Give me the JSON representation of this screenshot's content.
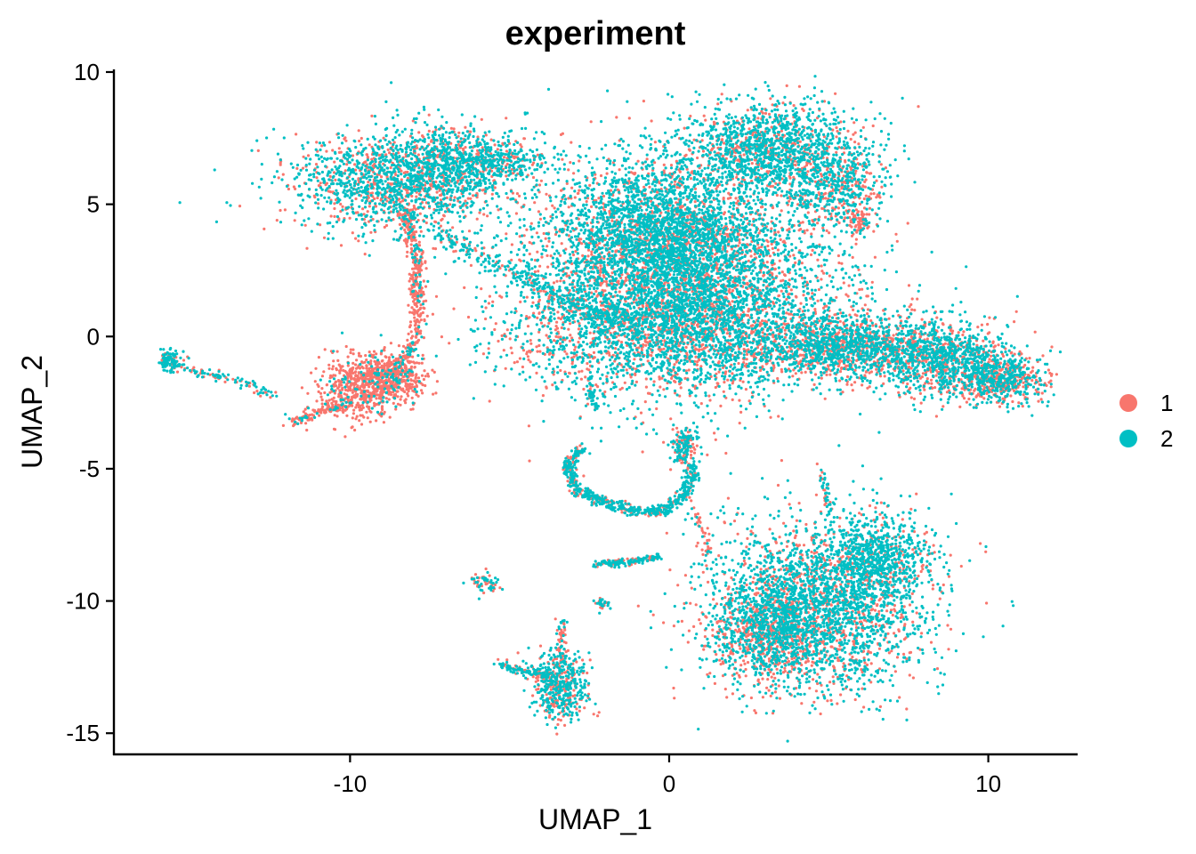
{
  "chart_data": {
    "type": "scatter",
    "title": "experiment",
    "xlabel": "UMAP_1",
    "ylabel": "UMAP_2",
    "xlim": [
      -17.4,
      12.8
    ],
    "ylim": [
      -15.8,
      10.1
    ],
    "x_ticks": [
      -10,
      0,
      10
    ],
    "x_tick_labels": [
      "-10",
      "0",
      "10"
    ],
    "y_ticks": [
      10,
      5,
      0,
      -5,
      -10,
      -15
    ],
    "y_tick_labels": [
      "10",
      "5",
      "0",
      "-5",
      "-10",
      "-15"
    ],
    "grid": false,
    "legend": "right",
    "series": [
      {
        "name": "1",
        "color": "#F8766D"
      },
      {
        "name": "2",
        "color": "#00BFC4"
      }
    ],
    "clusters": [
      {
        "cx": -8.3,
        "cy": 5.9,
        "sx": 1.7,
        "sy": 0.95,
        "n": 1700,
        "pA": 0.35
      },
      {
        "cx": -6.6,
        "cy": 6.8,
        "sx": 1.1,
        "sy": 0.6,
        "n": 500,
        "pA": 0.3
      },
      {
        "cx": -5.0,
        "cy": 6.6,
        "sx": 0.6,
        "sy": 0.3,
        "n": 140,
        "pA": 0.25
      },
      {
        "cx": -9.6,
        "cy": -1.9,
        "sx": 0.7,
        "sy": 0.55,
        "n": 600,
        "pA": 0.9
      },
      {
        "cx": -8.6,
        "cy": -1.5,
        "sx": 0.5,
        "sy": 0.45,
        "n": 350,
        "pA": 0.8
      },
      {
        "cx": -15.6,
        "cy": -0.95,
        "sx": 0.22,
        "sy": 0.2,
        "n": 110,
        "pA": 0.3
      },
      {
        "cx": 0.3,
        "cy": 2.2,
        "sx": 2.4,
        "sy": 2.1,
        "n": 5200,
        "pA": 0.3
      },
      {
        "cx": -0.3,
        "cy": 4.2,
        "sx": 1.5,
        "sy": 1.2,
        "n": 1500,
        "pA": 0.25
      },
      {
        "cx": 0.0,
        "cy": 0.2,
        "sx": 2.8,
        "sy": 1.1,
        "n": 1500,
        "pA": 0.4
      },
      {
        "cx": 3.3,
        "cy": 7.1,
        "sx": 1.4,
        "sy": 0.85,
        "n": 1500,
        "pA": 0.25
      },
      {
        "cx": 5.3,
        "cy": 5.5,
        "sx": 0.7,
        "sy": 0.6,
        "n": 400,
        "pA": 0.4
      },
      {
        "cx": 5.9,
        "cy": 4.3,
        "sx": 0.25,
        "sy": 0.25,
        "n": 80,
        "pA": 0.85
      },
      {
        "cx": 5.6,
        "cy": -0.4,
        "sx": 1.6,
        "sy": 0.6,
        "n": 1500,
        "pA": 0.4
      },
      {
        "cx": 8.6,
        "cy": -0.8,
        "sx": 1.0,
        "sy": 0.75,
        "n": 900,
        "pA": 0.35
      },
      {
        "cx": 10.4,
        "cy": -1.6,
        "sx": 0.7,
        "sy": 0.45,
        "n": 650,
        "pA": 0.5
      },
      {
        "cx": 4.6,
        "cy": -10.2,
        "sx": 1.7,
        "sy": 1.6,
        "n": 2800,
        "pA": 0.3
      },
      {
        "cx": 3.2,
        "cy": -11.2,
        "sx": 0.9,
        "sy": 0.9,
        "n": 900,
        "pA": 0.55
      },
      {
        "cx": 6.5,
        "cy": -8.3,
        "sx": 0.8,
        "sy": 0.9,
        "n": 700,
        "pA": 0.2
      },
      {
        "cx": -3.4,
        "cy": -13.2,
        "sx": 0.45,
        "sy": 0.65,
        "n": 500,
        "pA": 0.35
      },
      {
        "cx": 0.5,
        "cy": -4.2,
        "sx": 0.2,
        "sy": 0.35,
        "n": 160,
        "pA": 0.4
      },
      {
        "cx": -5.8,
        "cy": -9.3,
        "sx": 0.25,
        "sy": 0.2,
        "n": 60,
        "pA": 0.3
      },
      {
        "cx": -2.1,
        "cy": -10.1,
        "sx": 0.1,
        "sy": 0.12,
        "n": 30,
        "pA": 0.3
      }
    ],
    "strands": [
      {
        "points": [
          [
            -8.3,
            4.8
          ],
          [
            -7.9,
            3.0
          ],
          [
            -7.9,
            1.5
          ],
          [
            -7.9,
            0.0
          ],
          [
            -8.5,
            -1.2
          ]
        ],
        "n": 380,
        "w": 0.12,
        "pA": 0.85
      },
      {
        "points": [
          [
            -7.3,
            3.9
          ],
          [
            -5.0,
            2.5
          ],
          [
            -3.0,
            1.2
          ],
          [
            -1.5,
            0.5
          ]
        ],
        "n": 340,
        "w": 0.2,
        "pA": 0.3
      },
      {
        "points": [
          [
            -15.2,
            -1.2
          ],
          [
            -13.5,
            -1.7
          ],
          [
            -12.3,
            -2.3
          ]
        ],
        "n": 90,
        "w": 0.1,
        "pA": 0.4
      },
      {
        "points": [
          [
            -11.9,
            -3.3
          ],
          [
            -10.9,
            -2.8
          ],
          [
            -10.0,
            -2.5
          ]
        ],
        "n": 120,
        "w": 0.15,
        "pA": 0.8
      },
      {
        "points": [
          [
            -2.7,
            -4.2
          ],
          [
            -3.2,
            -4.8
          ],
          [
            -2.9,
            -5.9
          ],
          [
            -1.2,
            -6.6
          ],
          [
            -0.2,
            -6.6
          ],
          [
            0.5,
            -6.0
          ],
          [
            0.8,
            -4.9
          ]
        ],
        "n": 650,
        "w": 0.1,
        "pA": 0.3
      },
      {
        "points": [
          [
            -2.3,
            -8.6
          ],
          [
            -1.0,
            -8.5
          ],
          [
            -0.3,
            -8.3
          ]
        ],
        "n": 150,
        "w": 0.07,
        "pA": 0.3
      },
      {
        "points": [
          [
            0.8,
            -6.5
          ],
          [
            1.1,
            -7.5
          ],
          [
            1.2,
            -8.3
          ]
        ],
        "n": 40,
        "w": 0.1,
        "pA": 0.7
      },
      {
        "points": [
          [
            -3.3,
            -10.7
          ],
          [
            -3.4,
            -11.8
          ],
          [
            -3.4,
            -12.5
          ]
        ],
        "n": 60,
        "w": 0.08,
        "pA": 0.6
      },
      {
        "points": [
          [
            -5.3,
            -12.4
          ],
          [
            -4.5,
            -12.7
          ],
          [
            -3.7,
            -12.8
          ]
        ],
        "n": 120,
        "w": 0.1,
        "pA": 0.3
      },
      {
        "points": [
          [
            -2.5,
            -1.5
          ],
          [
            -2.4,
            -2.3
          ],
          [
            -2.3,
            -2.8
          ]
        ],
        "n": 40,
        "w": 0.06,
        "pA": 0.3
      },
      {
        "points": [
          [
            4.8,
            -5.0
          ],
          [
            4.9,
            -5.9
          ],
          [
            5.0,
            -6.6
          ]
        ],
        "n": 40,
        "w": 0.06,
        "pA": 0.4
      }
    ]
  }
}
